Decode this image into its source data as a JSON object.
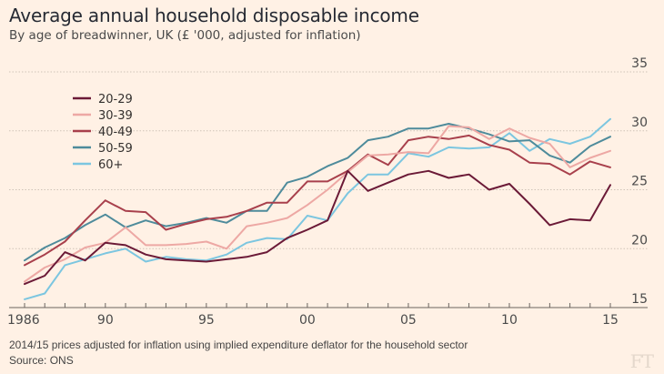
{
  "chart_data": {
    "type": "line",
    "title": "Average annual household disposable income",
    "subtitle": "By age of breadwinner, UK (£ '000, adjusted for inflation)",
    "xlabel": "",
    "ylabel": "",
    "x": [
      1986,
      1987,
      1988,
      1989,
      1990,
      1991,
      1992,
      1993,
      1994,
      1995,
      1996,
      1997,
      1998,
      1999,
      2000,
      2001,
      2002,
      2003,
      2004,
      2005,
      2006,
      2007,
      2008,
      2009,
      2010,
      2011,
      2012,
      2013,
      2014,
      2015
    ],
    "xlim": [
      1986,
      2015
    ],
    "ylim": [
      15,
      35
    ],
    "x_ticks": [
      {
        "value": 1986,
        "label": "1986"
      },
      {
        "value": 1990,
        "label": "90"
      },
      {
        "value": 1995,
        "label": "95"
      },
      {
        "value": 2000,
        "label": "00"
      },
      {
        "value": 2005,
        "label": "05"
      },
      {
        "value": 2010,
        "label": "10"
      },
      {
        "value": 2015,
        "label": "15"
      }
    ],
    "y_ticks": [
      {
        "value": 15,
        "label": "15"
      },
      {
        "value": 20,
        "label": "20"
      },
      {
        "value": 25,
        "label": "25"
      },
      {
        "value": 30,
        "label": "30"
      },
      {
        "value": 35,
        "label": "35"
      }
    ],
    "grid": true,
    "legend_position": "top-left",
    "series": [
      {
        "name": "20-29",
        "color": "#6b1a37",
        "values": [
          17.0,
          17.7,
          19.7,
          19.0,
          20.5,
          20.3,
          19.5,
          19.1,
          19.0,
          18.9,
          19.1,
          19.3,
          19.7,
          20.9,
          21.6,
          22.4,
          26.6,
          24.9,
          25.6,
          26.3,
          26.6,
          26.0,
          26.3,
          25.0,
          25.5,
          23.8,
          22.0,
          22.5,
          22.4,
          25.4
        ]
      },
      {
        "name": "30-39",
        "color": "#eda8a4",
        "values": [
          17.2,
          18.4,
          19.1,
          20.1,
          20.5,
          21.8,
          20.3,
          20.3,
          20.4,
          20.6,
          20.0,
          21.9,
          22.2,
          22.6,
          23.7,
          25.0,
          26.5,
          27.9,
          28.0,
          28.2,
          28.1,
          30.4,
          30.3,
          29.3,
          30.2,
          29.4,
          28.9,
          26.9,
          27.7,
          28.3
        ]
      },
      {
        "name": "40-49",
        "color": "#a8404c",
        "values": [
          18.6,
          19.5,
          20.6,
          22.4,
          24.1,
          23.2,
          23.1,
          21.6,
          22.1,
          22.5,
          22.7,
          23.2,
          23.9,
          23.9,
          25.7,
          25.7,
          26.6,
          28.0,
          27.1,
          29.2,
          29.5,
          29.3,
          29.6,
          28.8,
          28.4,
          27.3,
          27.2,
          26.3,
          27.4,
          26.9
        ]
      },
      {
        "name": "50-59",
        "color": "#4e8b9b",
        "values": [
          19.0,
          20.1,
          20.9,
          22.0,
          22.9,
          21.8,
          22.4,
          21.9,
          22.2,
          22.6,
          22.2,
          23.2,
          23.2,
          25.6,
          26.1,
          27.0,
          27.7,
          29.2,
          29.5,
          30.2,
          30.2,
          30.6,
          30.2,
          29.7,
          29.1,
          29.2,
          27.9,
          27.3,
          28.7,
          29.5
        ]
      },
      {
        "name": "60+",
        "color": "#7cc6e0",
        "values": [
          15.7,
          16.2,
          18.6,
          19.1,
          19.6,
          20.0,
          18.9,
          19.3,
          19.1,
          19.0,
          19.5,
          20.5,
          20.9,
          20.8,
          22.8,
          22.4,
          24.7,
          26.3,
          26.3,
          28.1,
          27.8,
          28.6,
          28.5,
          28.6,
          29.8,
          28.3,
          29.3,
          28.9,
          29.5,
          31.0
        ]
      }
    ],
    "footnote": "2014/15 prices adjusted for inflation using implied expenditure deflator for the household sector",
    "source": "Source: ONS"
  },
  "branding": {
    "logo_text": "FT"
  },
  "colors": {
    "background": "#fff1e5",
    "grid": "#cfc3b8",
    "axis": "#6b6560"
  }
}
